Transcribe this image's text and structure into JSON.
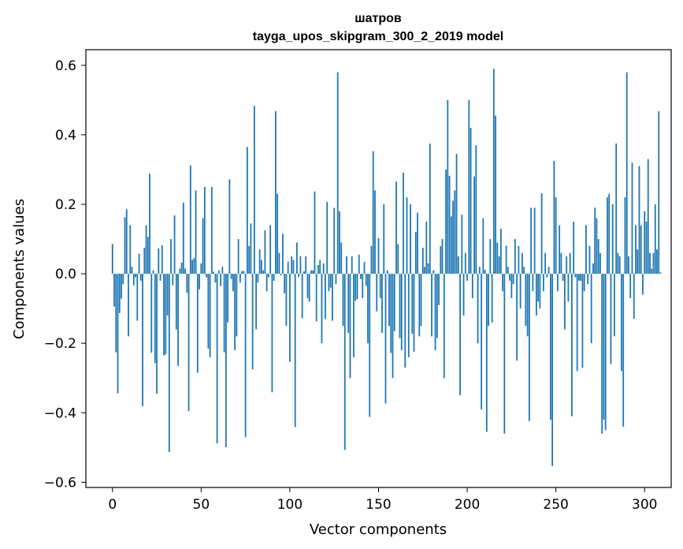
{
  "chart_data": {
    "type": "bar",
    "title": "шатров",
    "subtitle": "tayga_upos_skipgram_300_2_2019 model",
    "xlabel": "Vector components",
    "ylabel": "Components values",
    "xlim": [
      -15,
      315
    ],
    "ylim": [
      -0.615,
      0.645
    ],
    "xticks": [
      0,
      50,
      100,
      150,
      200,
      250,
      300
    ],
    "yticks": [
      -0.6,
      -0.4,
      -0.2,
      0.0,
      0.2,
      0.4,
      0.6
    ],
    "ytick_labels": [
      "−0.6",
      "−0.4",
      "−0.2",
      "0.0",
      "0.2",
      "0.4",
      "0.6"
    ],
    "bar_color": "#1f77b4",
    "grid": false,
    "legend": "none",
    "x_start": 0,
    "values": [
      0.086,
      -0.094,
      -0.226,
      -0.344,
      -0.113,
      -0.072,
      -0.03,
      0.163,
      0.186,
      -0.18,
      0.14,
      0.02,
      -0.033,
      -0.01,
      -0.135,
      0.058,
      -0.02,
      -0.381,
      0.075,
      0.14,
      0.106,
      0.288,
      -0.227,
      0.01,
      -0.257,
      -0.345,
      0.073,
      -0.02,
      0.082,
      -0.235,
      -0.232,
      -0.12,
      -0.513,
      0.1,
      -0.033,
      0.168,
      -0.16,
      -0.265,
      0.015,
      0.032,
      0.205,
      0.015,
      -0.055,
      -0.395,
      0.312,
      0.04,
      0.045,
      0.24,
      -0.285,
      -0.045,
      0.03,
      0.16,
      0.25,
      -0.01,
      -0.215,
      -0.24,
      0.25,
      0.006,
      -0.025,
      -0.488,
      0.01,
      -0.035,
      0.02,
      -0.226,
      -0.499,
      -0.14,
      0.272,
      -0.015,
      -0.05,
      -0.22,
      -0.18,
      0.1,
      -0.025,
      0.008,
      0.008,
      -0.47,
      0.365,
      0.08,
      0.145,
      -0.275,
      0.483,
      -0.16,
      -0.025,
      0.07,
      0.04,
      0.01,
      0.125,
      -0.05,
      -0.01,
      0.14,
      -0.341,
      -0.02,
      0.468,
      0.23,
      0.06,
      -0.005,
      0.115,
      -0.056,
      -0.15,
      0.035,
      -0.253,
      0.05,
      0.04,
      -0.441,
      0.09,
      -0.009,
      0.05,
      -0.128,
      0.007,
      0.05,
      -0.07,
      -0.08,
      0.01,
      0.01,
      0.237,
      -0.137,
      0.025,
      0.04,
      -0.2,
      0.03,
      -0.13,
      0.207,
      -0.05,
      -0.04,
      -0.135,
      0.19,
      -0.03,
      0.58,
      0.18,
      0.09,
      -0.15,
      -0.507,
      0.05,
      -0.17,
      -0.3,
      0.05,
      -0.24,
      -0.078,
      -0.073,
      0.055,
      -0.015,
      -0.07,
      0.034,
      -0.035,
      -0.2,
      -0.412,
      0.08,
      0.353,
      0.24,
      -0.108,
      0.103,
      -0.07,
      -0.17,
      0.2,
      -0.373,
      0.01,
      -0.15,
      -0.228,
      -0.3,
      -0.165,
      0.265,
      0.085,
      -0.185,
      -0.22,
      0.291,
      -0.27,
      0.22,
      -0.24,
      0.2,
      -0.173,
      -0.224,
      0.12,
      0.176,
      -0.18,
      -0.15,
      0.075,
      0.02,
      0.15,
      0.03,
      0.375,
      -0.18,
      0.01,
      -0.22,
      -0.185,
      -0.09,
      0.08,
      0.1,
      -0.3,
      0.3,
      0.5,
      0.282,
      0.165,
      0.21,
      0.24,
      0.345,
      0.05,
      -0.35,
      0.17,
      -0.12,
      0.06,
      -0.02,
      0.5,
      0.42,
      -0.07,
      0.28,
      0.37,
      -0.2,
      0.02,
      -0.39,
      0.16,
      0.012,
      -0.455,
      -0.15,
      0.1,
      -0.14,
      0.59,
      0.455,
      0.09,
      0.05,
      0.13,
      -0.05,
      -0.46,
      0.081,
      0.02,
      -0.02,
      -0.07,
      -0.03,
      0.1,
      -0.25,
      0.08,
      -0.1,
      0.06,
      0.02,
      -0.15,
      -0.18,
      -0.424,
      0.19,
      -0.05,
      0.19,
      -0.12,
      -0.08,
      -0.1,
      0.232,
      -0.05,
      0.06,
      -0.01,
      0.02,
      -0.42,
      -0.553,
      0.325,
      0.22,
      -0.05,
      0.14,
      0.06,
      -0.02,
      -0.16,
      0.05,
      -0.08,
      0.06,
      -0.41,
      0.15,
      -0.01,
      -0.28,
      -0.02,
      -0.02,
      -0.27,
      -0.05,
      0.14,
      -0.03,
      0.08,
      -0.2,
      0.03,
      0.19,
      0.16,
      0.1,
      0.06,
      -0.46,
      -0.42,
      -0.45,
      0.22,
      0.23,
      -0.26,
      0.2,
      -0.18,
      0.375,
      0.06,
      0.05,
      -0.28,
      -0.44,
      0.22,
      0.58,
      0.05,
      -0.07,
      0.32,
      -0.13,
      0.14,
      0.07,
      0.31,
      0.14,
      -0.06,
      0.18,
      0.15,
      0.33,
      0.06,
      0.015,
      0.06,
      0.2,
      0.07,
      0.468,
      0.004
    ]
  }
}
